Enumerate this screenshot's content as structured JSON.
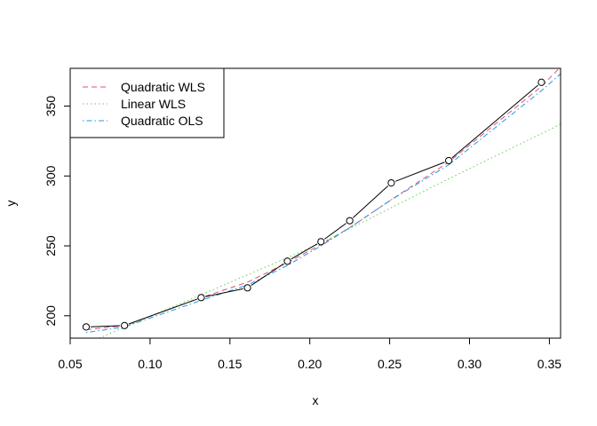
{
  "chart_data": {
    "type": "line",
    "xlabel": "x",
    "ylabel": "y",
    "xlim": [
      0.05,
      0.357
    ],
    "ylim": [
      184,
      377
    ],
    "x_ticks": [
      0.05,
      0.1,
      0.15,
      0.2,
      0.25,
      0.3,
      0.35
    ],
    "x_tick_labels": [
      "0.05",
      "0.10",
      "0.15",
      "0.20",
      "0.25",
      "0.30",
      "0.35"
    ],
    "y_ticks": [
      200,
      250,
      300,
      350
    ],
    "y_tick_labels": [
      "200",
      "250",
      "300",
      "350"
    ],
    "grid": false,
    "legend_position": "top-left",
    "observed": {
      "x": [
        0.06,
        0.084,
        0.132,
        0.161,
        0.186,
        0.207,
        0.225,
        0.251,
        0.287,
        0.345
      ],
      "y": [
        192,
        193,
        213,
        220,
        239,
        253,
        268,
        295,
        311,
        367
      ],
      "color": "#000000"
    },
    "series": [
      {
        "name": "Quadratic WLS",
        "style": "dashed",
        "color": "#DF536B",
        "x": [
          0.06,
          0.084,
          0.132,
          0.161,
          0.186,
          0.207,
          0.225,
          0.251,
          0.287,
          0.345,
          0.357
        ],
        "y": [
          190,
          193,
          213,
          224,
          238,
          251,
          263,
          283,
          310,
          364,
          378
        ]
      },
      {
        "name": "Linear WLS",
        "style": "dotted",
        "color": "#61D04F",
        "x": [
          0.068,
          0.132,
          0.207,
          0.287,
          0.357
        ],
        "y": [
          184,
          215,
          252,
          298,
          337
        ]
      },
      {
        "name": "Quadratic OLS",
        "style": "dotdash",
        "color": "#2297E6",
        "x": [
          0.06,
          0.084,
          0.132,
          0.161,
          0.186,
          0.207,
          0.225,
          0.251,
          0.287,
          0.345,
          0.357
        ],
        "y": [
          188,
          192,
          211,
          222,
          236,
          250,
          263,
          283,
          308,
          361,
          373
        ]
      }
    ]
  }
}
